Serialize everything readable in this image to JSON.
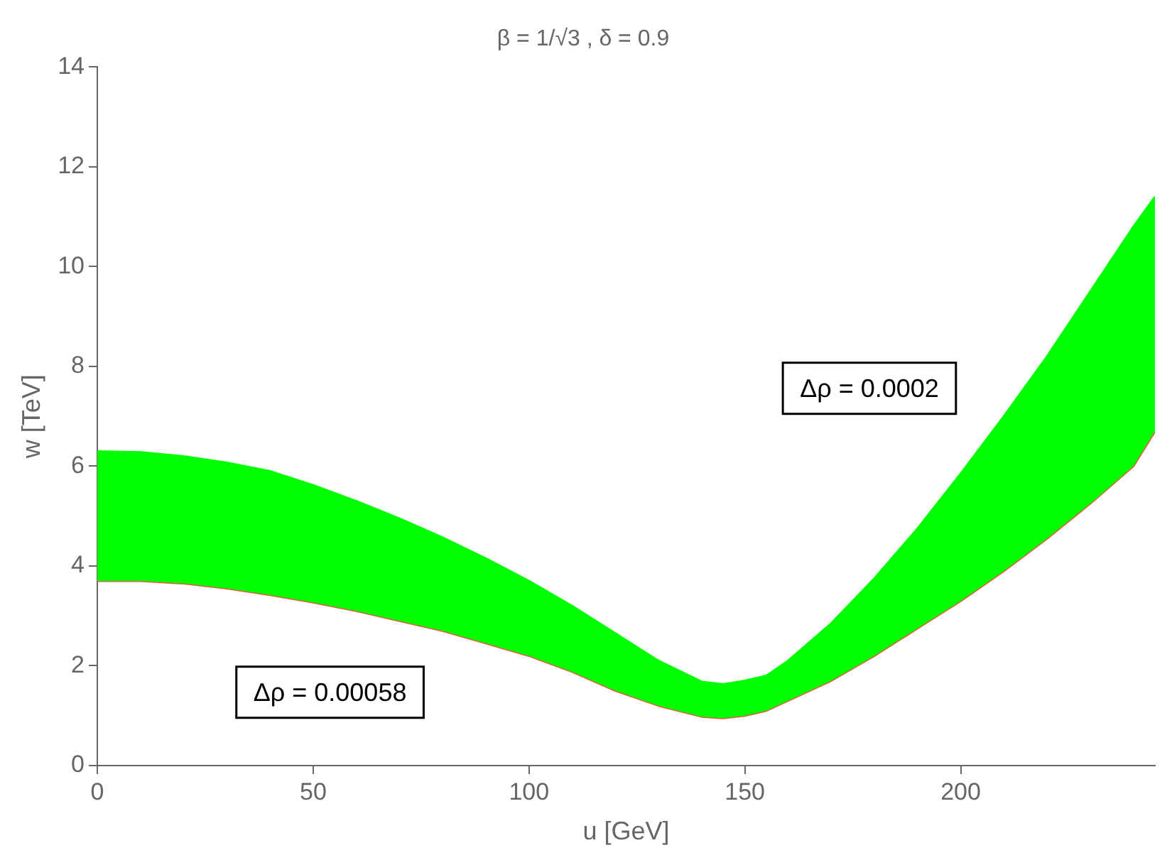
{
  "chart_data": {
    "type": "line",
    "title": "β = 1/√3 , δ = 0.9",
    "xlabel": "u [GeV]",
    "ylabel": "w [TeV]",
    "x": [
      0,
      10,
      20,
      30,
      40,
      50,
      60,
      70,
      80,
      90,
      100,
      110,
      120,
      130,
      140,
      145,
      150,
      155,
      160,
      170,
      180,
      190,
      200,
      210,
      220,
      230,
      240,
      245
    ],
    "series": [
      {
        "type": "area",
        "color": "#00ff00",
        "values": [
          6.3,
          6.28,
          6.2,
          6.07,
          5.9,
          5.62,
          5.3,
          4.95,
          4.57,
          4.15,
          3.7,
          3.2,
          2.65,
          2.1,
          1.68,
          1.63,
          1.7,
          1.8,
          2.1,
          2.85,
          3.75,
          4.75,
          5.85,
          7.0,
          8.2,
          9.5,
          10.8,
          11.4
        ]
      },
      {
        "type": "line",
        "color": "#e0603c",
        "values": [
          3.7,
          3.7,
          3.65,
          3.55,
          3.42,
          3.27,
          3.1,
          2.9,
          2.7,
          2.45,
          2.2,
          1.88,
          1.5,
          1.2,
          0.98,
          0.95,
          1.0,
          1.1,
          1.3,
          1.7,
          2.2,
          2.75,
          3.3,
          3.9,
          4.55,
          5.25,
          6.0,
          6.7
        ]
      }
    ],
    "xlim": [
      0,
      245
    ],
    "xticks": [
      0,
      50,
      100,
      150,
      200
    ],
    "ylim": [
      0,
      14
    ],
    "yticks": [
      0,
      2,
      4,
      6,
      8,
      10,
      12,
      14
    ],
    "grid": false,
    "legend": false,
    "annotations": [
      "Δρ = 0.0002",
      "Δρ = 0.00058"
    ]
  }
}
